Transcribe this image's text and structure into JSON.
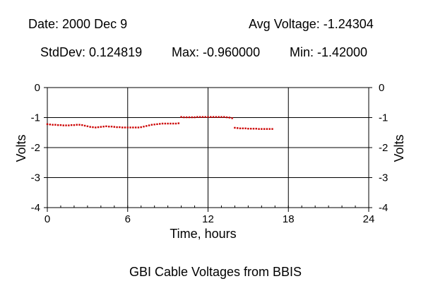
{
  "header": {
    "date": "Date: 2000 Dec 9",
    "avg": "Avg Voltage: -1.24304",
    "stddev": "StdDev: 0.124819",
    "max": "Max: -0.960000",
    "min": "Min: -1.42000"
  },
  "chart_data": {
    "type": "scatter",
    "title": "GBI Cable Voltages from BBIS",
    "xlabel": "Time, hours",
    "ylabel": "Volts",
    "y2label": "Volts",
    "xlim": [
      0,
      24
    ],
    "ylim": [
      -4,
      0
    ],
    "xticks": [
      0,
      6,
      12,
      18,
      24
    ],
    "yticks": [
      0,
      -1,
      -2,
      -3,
      -4
    ],
    "xtick_labels": [
      "0",
      "6",
      "12",
      "18",
      "24"
    ],
    "ytick_labels": [
      "0",
      "-1",
      "-2",
      "-3",
      "-4"
    ],
    "grid": true,
    "marker_color": "#cc0000",
    "series": [
      {
        "x": [
          0.0,
          0.2,
          0.4,
          0.6,
          0.8,
          1.0,
          1.2,
          1.4,
          1.6,
          1.8,
          2.0,
          2.2,
          2.4,
          2.6,
          2.8,
          3.0,
          3.2,
          3.4,
          3.6,
          3.8,
          4.0,
          4.2,
          4.4,
          4.6,
          4.8,
          5.0,
          5.2,
          5.4,
          5.6,
          5.8,
          6.0,
          6.2,
          6.4,
          6.6,
          6.8,
          7.0,
          7.2,
          7.4,
          7.6,
          7.8,
          8.0,
          8.2,
          8.4,
          8.6,
          8.8,
          9.0,
          9.2,
          9.4,
          9.6,
          9.8,
          10.0,
          10.2,
          10.4,
          10.6,
          10.8,
          11.0,
          11.2,
          11.4,
          11.6,
          11.8,
          12.0,
          12.2,
          12.4,
          12.6,
          12.8,
          13.0,
          13.2,
          13.4,
          13.6,
          13.8,
          14.0,
          14.2,
          14.4,
          14.6,
          14.8,
          15.0,
          15.2,
          15.4,
          15.6,
          15.8,
          16.0,
          16.2,
          16.4,
          16.6,
          16.8
        ],
        "y": [
          -1.22,
          -1.23,
          -1.24,
          -1.24,
          -1.25,
          -1.25,
          -1.26,
          -1.26,
          -1.26,
          -1.25,
          -1.25,
          -1.24,
          -1.24,
          -1.25,
          -1.27,
          -1.29,
          -1.31,
          -1.32,
          -1.33,
          -1.32,
          -1.31,
          -1.3,
          -1.29,
          -1.3,
          -1.3,
          -1.31,
          -1.32,
          -1.32,
          -1.33,
          -1.33,
          -1.33,
          -1.33,
          -1.33,
          -1.33,
          -1.33,
          -1.32,
          -1.3,
          -1.28,
          -1.26,
          -1.24,
          -1.23,
          -1.22,
          -1.21,
          -1.2,
          -1.2,
          -1.2,
          -1.2,
          -1.2,
          -1.2,
          -1.19,
          -0.98,
          -0.99,
          -0.99,
          -0.99,
          -0.99,
          -0.99,
          -0.98,
          -0.98,
          -0.98,
          -0.98,
          -0.98,
          -0.98,
          -0.98,
          -0.98,
          -0.98,
          -0.98,
          -0.98,
          -0.99,
          -1.0,
          -1.02,
          -1.34,
          -1.35,
          -1.36,
          -1.36,
          -1.36,
          -1.37,
          -1.37,
          -1.37,
          -1.37,
          -1.38,
          -1.38,
          -1.38,
          -1.38,
          -1.38,
          -1.38
        ]
      }
    ]
  }
}
